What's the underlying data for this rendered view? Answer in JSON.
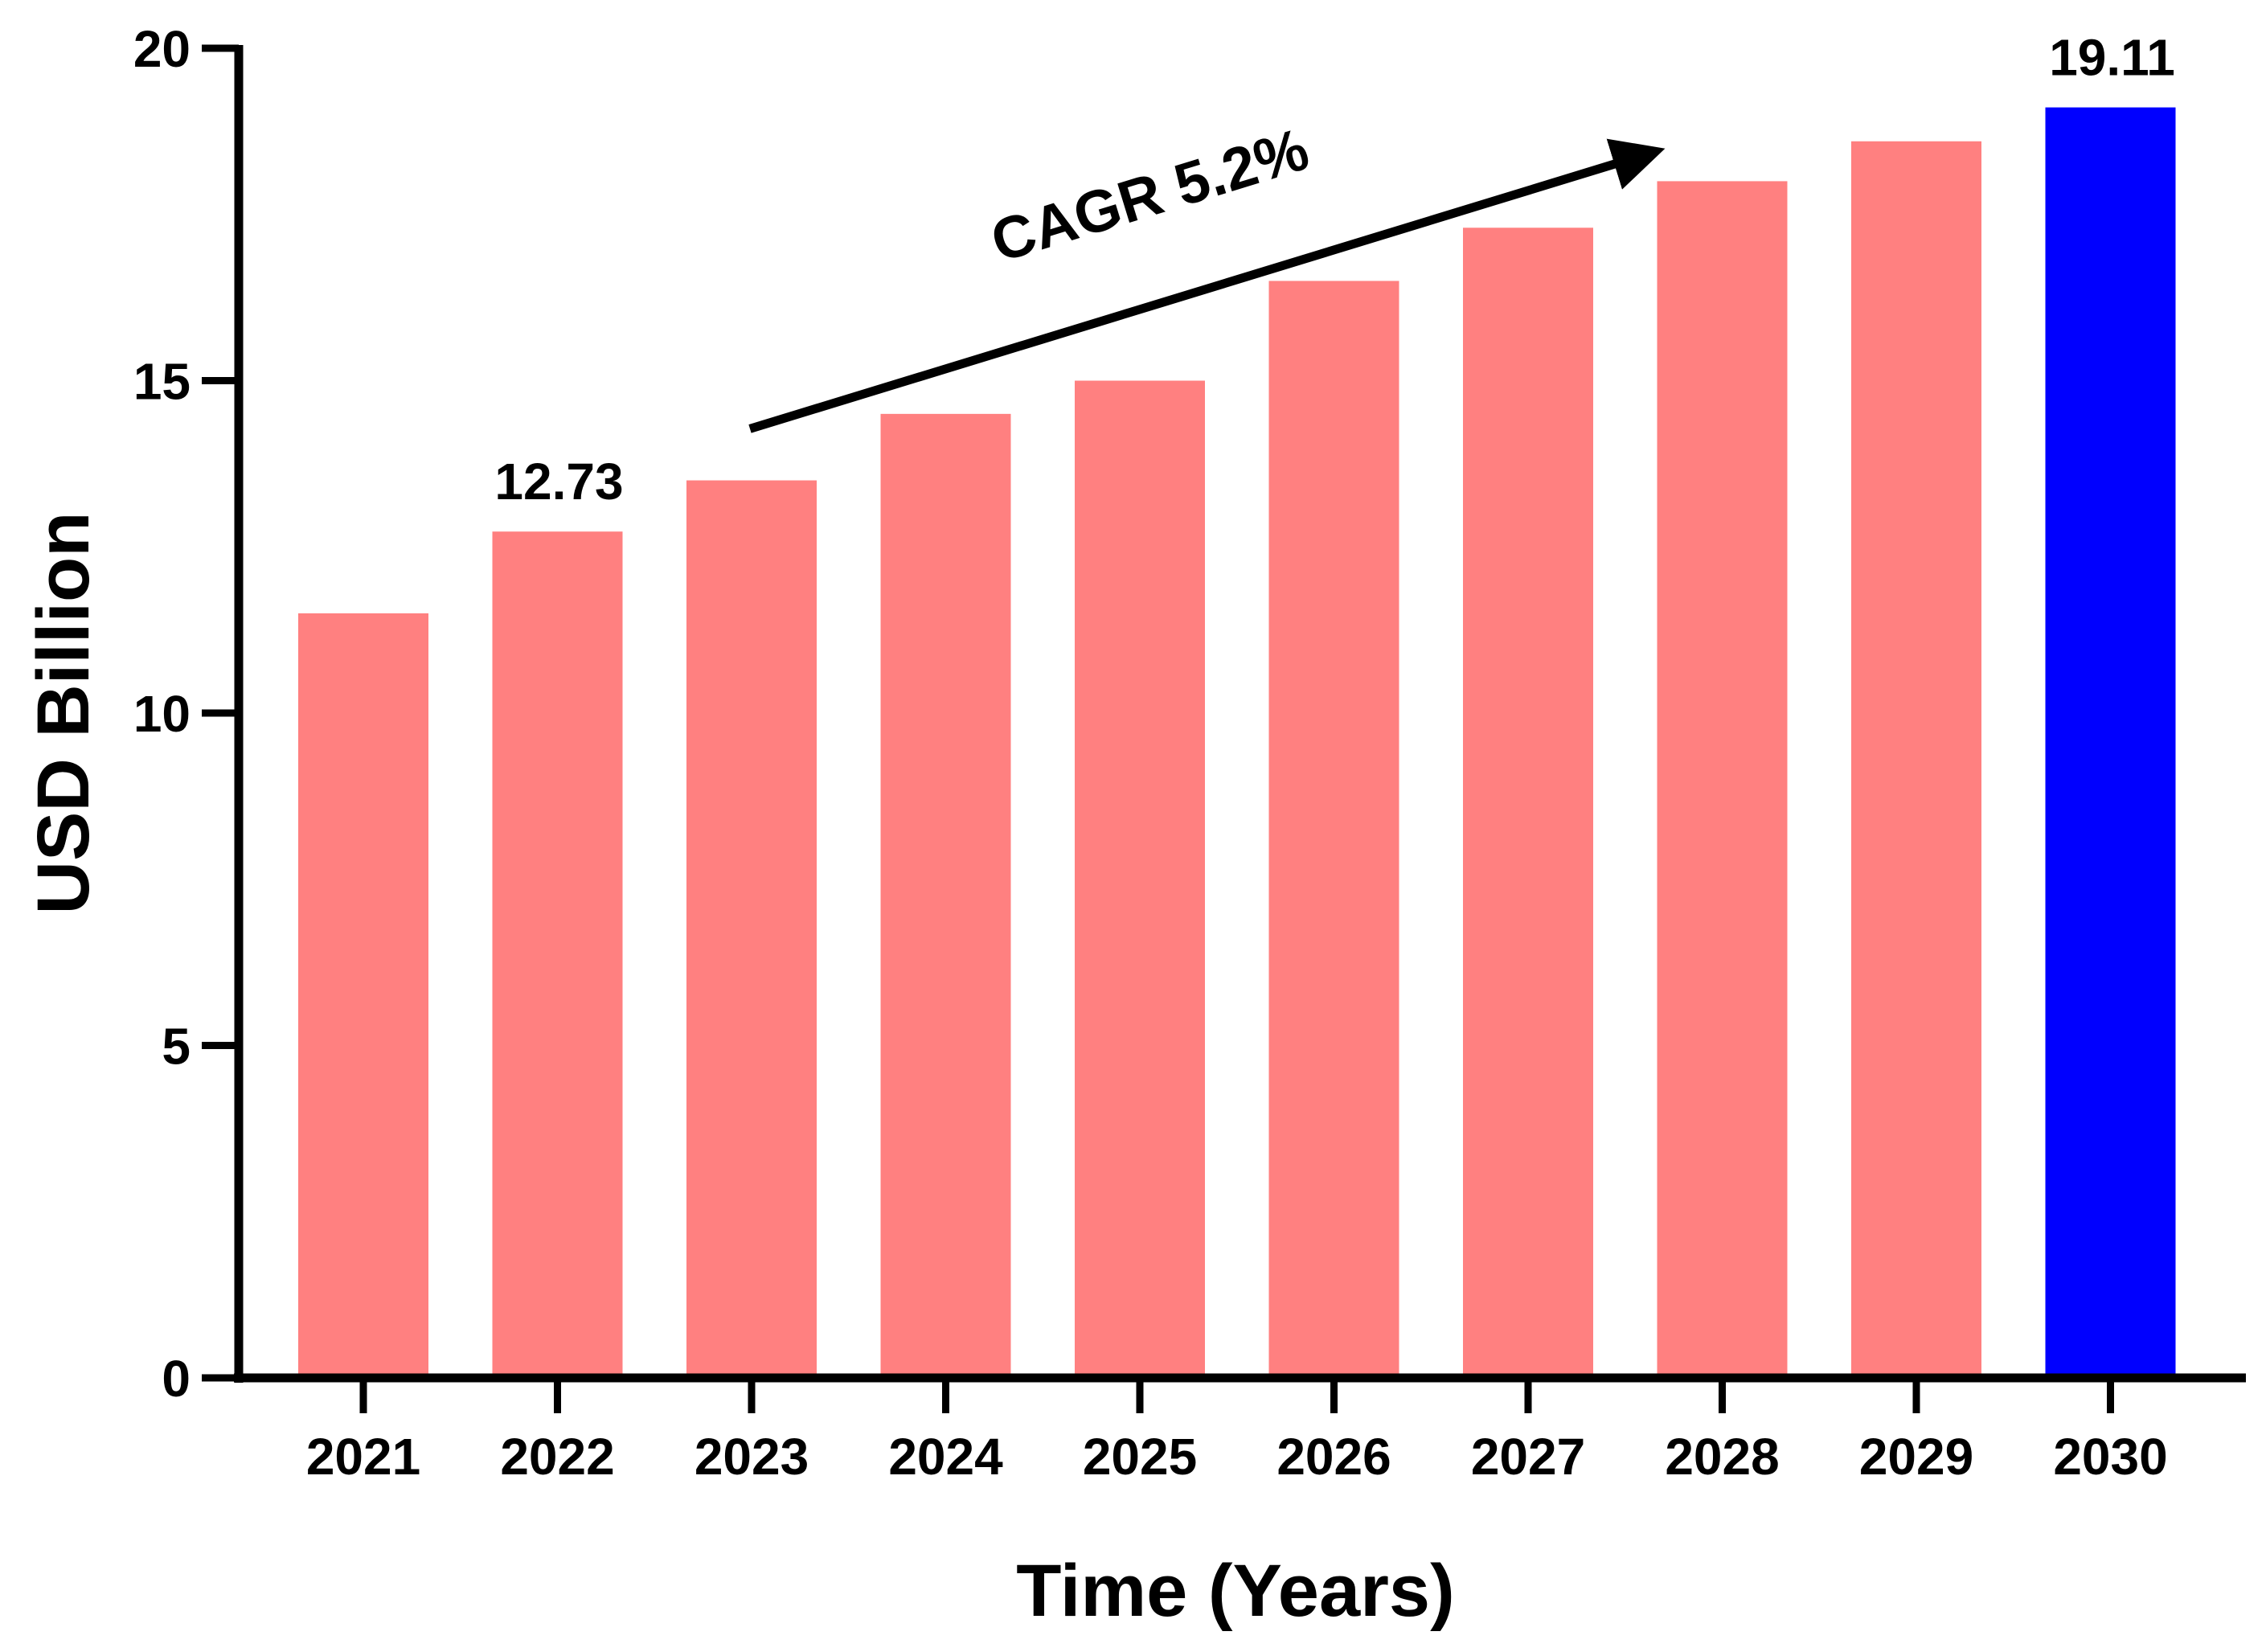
{
  "chart_data": {
    "type": "bar",
    "categories": [
      "2021",
      "2022",
      "2023",
      "2024",
      "2025",
      "2026",
      "2027",
      "2028",
      "2029",
      "2030"
    ],
    "values": [
      11.5,
      12.73,
      13.5,
      14.5,
      15.0,
      16.5,
      17.3,
      18.0,
      18.6,
      19.11
    ],
    "bar_colors": [
      "#ff8080",
      "#ff8080",
      "#ff8080",
      "#ff8080",
      "#ff8080",
      "#ff8080",
      "#ff8080",
      "#ff8080",
      "#ff8080",
      "#0000ff"
    ],
    "data_labels": [
      {
        "category": "2022",
        "text": "12.73"
      },
      {
        "category": "2030",
        "text": "19.11"
      }
    ],
    "annotation": {
      "text": "CAGR 5.2%",
      "type": "arrow",
      "from": {
        "category": "2023",
        "value": 14.3
      },
      "to": {
        "category": "2028",
        "value": 18.3
      }
    },
    "xlabel": "Time (Years)",
    "ylabel": "USD Billion",
    "ylim": [
      0,
      20
    ],
    "yticks": [
      0,
      5,
      10,
      15,
      20
    ],
    "grid": false,
    "legend": "none"
  }
}
